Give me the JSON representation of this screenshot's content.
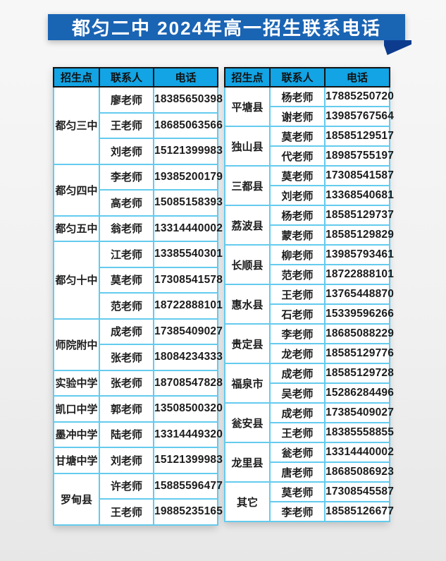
{
  "banner": {
    "title": "都匀二中 2024年高一招生联系电话",
    "bg_color": "#1a64b4",
    "fold_color": "#0d3c8f"
  },
  "colors": {
    "header_bg": "#12a4e4",
    "header_border": "#141414",
    "cell_border": "#64cbee",
    "text": "#1c1c1c"
  },
  "table_headers": {
    "site": "招生点",
    "contact": "联系人",
    "phone": "电话"
  },
  "tables": [
    {
      "position": "left",
      "groups": [
        {
          "site": "都匀三中",
          "contacts": [
            {
              "name": "廖老师",
              "phone": "18385650398"
            },
            {
              "name": "王老师",
              "phone": "18685063566"
            },
            {
              "name": "刘老师",
              "phone": "15121399983"
            }
          ]
        },
        {
          "site": "都匀四中",
          "contacts": [
            {
              "name": "李老师",
              "phone": "19385200179"
            },
            {
              "name": "高老师",
              "phone": "15085158393"
            }
          ]
        },
        {
          "site": "都匀五中",
          "contacts": [
            {
              "name": "翁老师",
              "phone": "13314440002"
            }
          ]
        },
        {
          "site": "都匀十中",
          "contacts": [
            {
              "name": "江老师",
              "phone": "13385540301"
            },
            {
              "name": "莫老师",
              "phone": "17308541578"
            },
            {
              "name": "范老师",
              "phone": "18722888101"
            }
          ]
        },
        {
          "site": "师院附中",
          "contacts": [
            {
              "name": "成老师",
              "phone": "17385409027"
            },
            {
              "name": "张老师",
              "phone": "18084234333"
            }
          ]
        },
        {
          "site": "实验中学",
          "contacts": [
            {
              "name": "张老师",
              "phone": "18708547828"
            }
          ]
        },
        {
          "site": "凯口中学",
          "contacts": [
            {
              "name": "郭老师",
              "phone": "13508500320"
            }
          ]
        },
        {
          "site": "墨冲中学",
          "contacts": [
            {
              "name": "陆老师",
              "phone": "13314449320"
            }
          ]
        },
        {
          "site": "甘塘中学",
          "contacts": [
            {
              "name": "刘老师",
              "phone": "15121399983"
            }
          ]
        },
        {
          "site": "罗甸县",
          "contacts": [
            {
              "name": "许老师",
              "phone": "15885596477"
            },
            {
              "name": "王老师",
              "phone": "19885235165"
            }
          ]
        }
      ]
    },
    {
      "position": "right",
      "groups": [
        {
          "site": "平塘县",
          "contacts": [
            {
              "name": "杨老师",
              "phone": "17885250720"
            },
            {
              "name": "谢老师",
              "phone": "13985767564"
            }
          ]
        },
        {
          "site": "独山县",
          "contacts": [
            {
              "name": "莫老师",
              "phone": "18585129517"
            },
            {
              "name": "代老师",
              "phone": "18985755197"
            }
          ]
        },
        {
          "site": "三都县",
          "contacts": [
            {
              "name": "莫老师",
              "phone": "17308541587"
            },
            {
              "name": "刘老师",
              "phone": "13368540681"
            }
          ]
        },
        {
          "site": "荔波县",
          "contacts": [
            {
              "name": "杨老师",
              "phone": "18585129737"
            },
            {
              "name": "蒙老师",
              "phone": "18585129829"
            }
          ]
        },
        {
          "site": "长顺县",
          "contacts": [
            {
              "name": "柳老师",
              "phone": "13985793461"
            },
            {
              "name": "范老师",
              "phone": "18722888101"
            }
          ]
        },
        {
          "site": "惠水县",
          "contacts": [
            {
              "name": "王老师",
              "phone": "13765448870"
            },
            {
              "name": "石老师",
              "phone": "15339596266"
            }
          ]
        },
        {
          "site": "贵定县",
          "contacts": [
            {
              "name": "李老师",
              "phone": "18685088229"
            },
            {
              "name": "龙老师",
              "phone": "18585129776"
            }
          ]
        },
        {
          "site": "福泉市",
          "contacts": [
            {
              "name": "成老师",
              "phone": "18585129728"
            },
            {
              "name": "吴老师",
              "phone": "15286284496"
            }
          ]
        },
        {
          "site": "瓮安县",
          "contacts": [
            {
              "name": "成老师",
              "phone": "17385409027"
            },
            {
              "name": "王老师",
              "phone": "18385558855"
            }
          ]
        },
        {
          "site": "龙里县",
          "contacts": [
            {
              "name": "瓮老师",
              "phone": "13314440002"
            },
            {
              "name": "唐老师",
              "phone": "18685086923"
            }
          ]
        },
        {
          "site": "其它",
          "contacts": [
            {
              "name": "莫老师",
              "phone": "17308545587"
            },
            {
              "name": "李老师",
              "phone": "18585126677"
            }
          ]
        }
      ]
    }
  ]
}
